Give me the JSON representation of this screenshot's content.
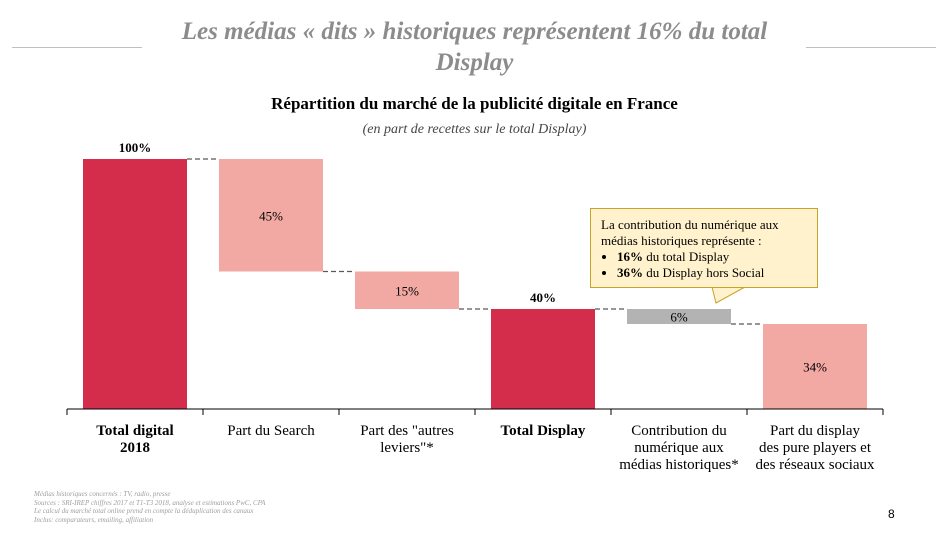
{
  "slide": {
    "title": "Les médias « dits » historiques représentent 16% du total Display",
    "page_number": "8"
  },
  "chart_data": {
    "type": "bar",
    "subtype": "waterfall",
    "title": "Répartition du marché de la publicité digitale en France",
    "subtitle": "(en part de recettes sur le total Display)",
    "categories": [
      "Total digital 2018",
      "Part du Search",
      "Part des \"autres leviers\"*",
      "Total Display",
      "Contribution du numérique aux médias historiques*",
      "Part du display des pure players et des réseaux sociaux"
    ],
    "values": [
      100,
      45,
      15,
      40,
      6,
      34
    ],
    "bases": [
      0,
      55,
      40,
      0,
      34,
      0
    ],
    "value_labels": [
      "100%",
      "45%",
      "15%",
      "40%",
      "6%",
      "34%"
    ],
    "bold_categories": [
      true,
      false,
      false,
      true,
      false,
      false
    ],
    "colors": [
      "#d42c4b",
      "#f2a9a3",
      "#f2a9a3",
      "#d42c4b",
      "#b3b3b3",
      "#f2a9a3"
    ],
    "ylim": [
      0,
      100
    ],
    "grid": false,
    "legend": "none"
  },
  "callout": {
    "intro": "La contribution du numérique aux médias historiques représente :",
    "items": [
      {
        "bold": "16%",
        "text": " du total Display"
      },
      {
        "bold": "36%",
        "text": " du Display hors Social"
      }
    ]
  },
  "sources": [
    "Médias historiques concernés : TV, radio, presse",
    "Sources : SRI-IREP chiffres 2017 et T1-T3 2018, analyse et estimations PwC, CPA",
    "Le calcul du marché total online prend en compte la déduplication des canaux",
    "Inclus: comparateurs, emailing, affiliation"
  ]
}
